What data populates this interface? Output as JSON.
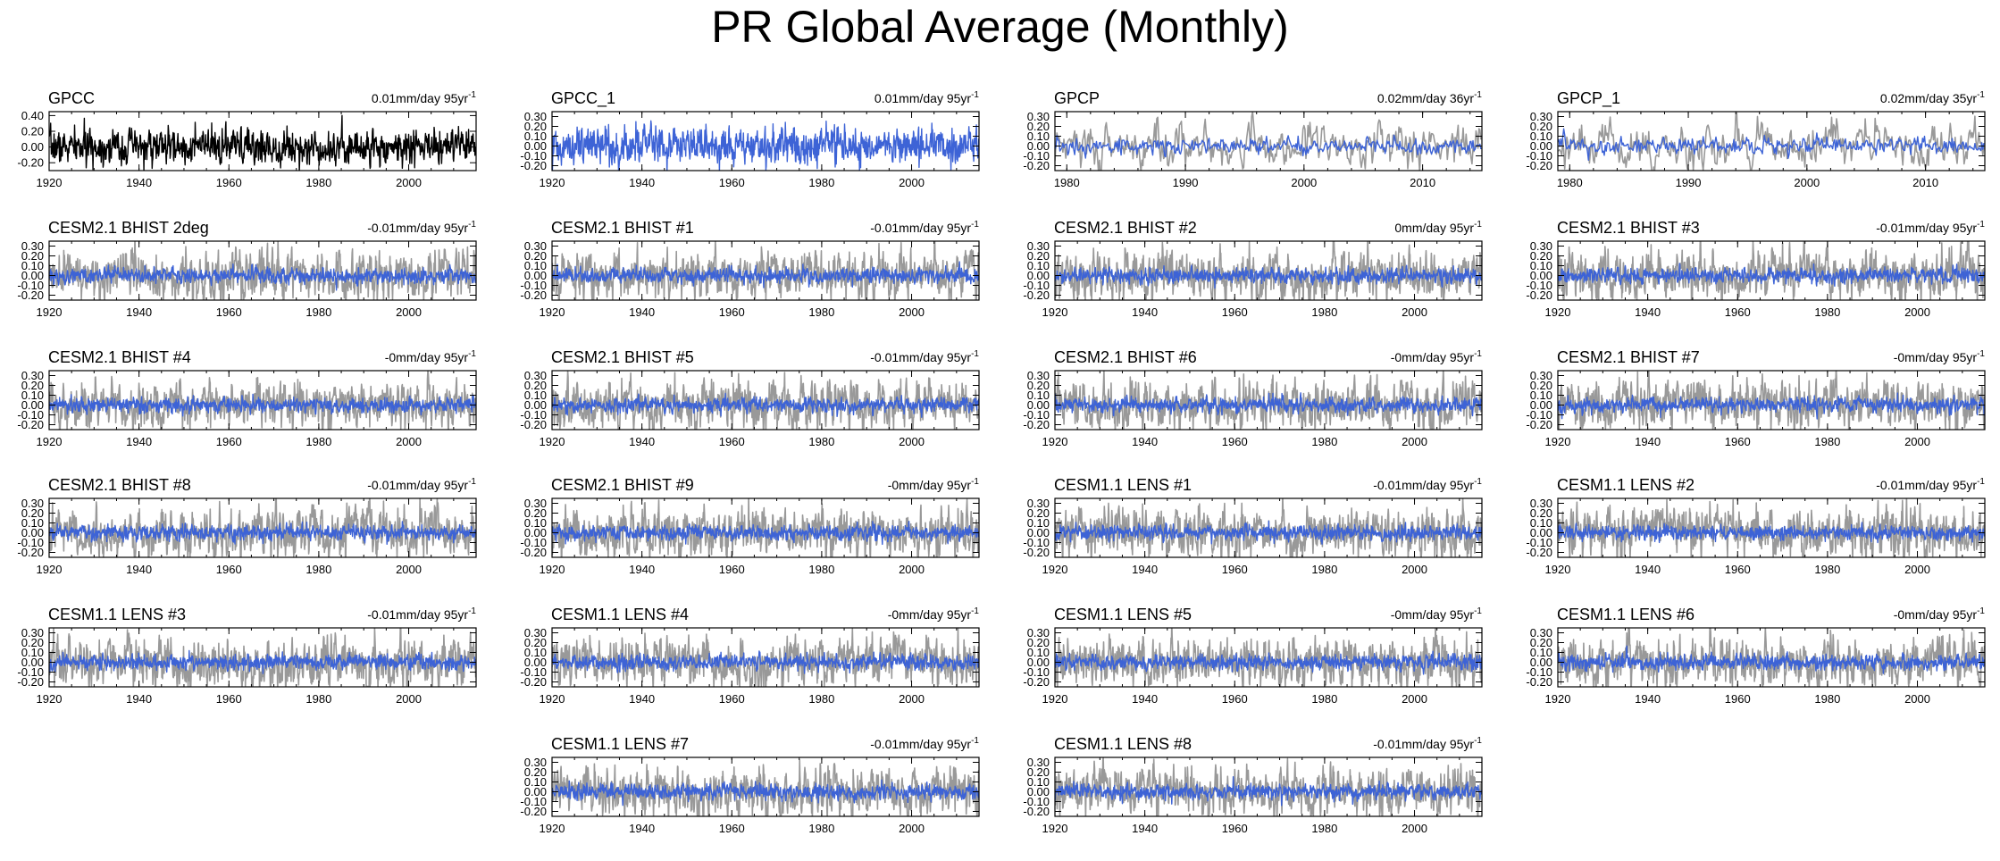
{
  "title": "PR Global Average (Monthly)",
  "colors": {
    "observed": "#000000",
    "model": "#3d63d6",
    "reference": "#999999",
    "frame": "#000000"
  },
  "chart_data": [
    {
      "type": "line",
      "title": "GPCC",
      "trend_label": "0.01mm/day 95yr",
      "trend_exp": "-1",
      "xlim": [
        1920,
        2015
      ],
      "xticks": [
        1920,
        1940,
        1960,
        1980,
        2000
      ],
      "ylim": [
        -0.3,
        0.45
      ],
      "yticks": [
        -0.2,
        0,
        0.2,
        0.4
      ],
      "ytick_labels": [
        "-0.20",
        "0.00",
        "0.20",
        "0.40"
      ],
      "series": [
        {
          "name": "GPCC",
          "role": "observed",
          "amplitude": 0.1
        }
      ]
    },
    {
      "type": "line",
      "title": "GPCC_1",
      "trend_label": "0.01mm/day 95yr",
      "trend_exp": "-1",
      "xlim": [
        1920,
        2015
      ],
      "xticks": [
        1920,
        1940,
        1960,
        1980,
        2000
      ],
      "ylim": [
        -0.25,
        0.35
      ],
      "yticks": [
        -0.2,
        -0.1,
        0,
        0.1,
        0.2,
        0.3
      ],
      "ytick_labels": [
        "-0.20",
        "-0.10",
        "0.00",
        "0.10",
        "0.20",
        "0.30"
      ],
      "series": [
        {
          "name": "GPCC_1",
          "role": "model",
          "amplitude": 0.09
        }
      ]
    },
    {
      "type": "line",
      "title": "GPCP",
      "trend_label": "0.02mm/day 36yr",
      "trend_exp": "-1",
      "xlim": [
        1979,
        2015
      ],
      "xticks": [
        1980,
        1990,
        2000,
        2010
      ],
      "ylim": [
        -0.25,
        0.35
      ],
      "yticks": [
        -0.2,
        -0.1,
        0,
        0.1,
        0.2,
        0.3
      ],
      "ytick_labels": [
        "-0.20",
        "-0.10",
        "0.00",
        "0.10",
        "0.20",
        "0.30"
      ],
      "series": [
        {
          "name": "reference",
          "role": "reference",
          "amplitude": 0.1
        },
        {
          "name": "GPCP",
          "role": "model",
          "amplitude": 0.04
        }
      ]
    },
    {
      "type": "line",
      "title": "GPCP_1",
      "trend_label": "0.02mm/day 35yr",
      "trend_exp": "-1",
      "xlim": [
        1979,
        2015
      ],
      "xticks": [
        1980,
        1990,
        2000,
        2010
      ],
      "ylim": [
        -0.25,
        0.35
      ],
      "yticks": [
        -0.2,
        -0.1,
        0,
        0.1,
        0.2,
        0.3
      ],
      "ytick_labels": [
        "-0.20",
        "-0.10",
        "0.00",
        "0.10",
        "0.20",
        "0.30"
      ],
      "series": [
        {
          "name": "reference",
          "role": "reference",
          "amplitude": 0.1
        },
        {
          "name": "GPCP_1",
          "role": "model",
          "amplitude": 0.04
        }
      ]
    },
    {
      "type": "line",
      "title": "CESM2.1 BHIST 2deg",
      "trend_label": "-0.01mm/day 95yr",
      "trend_exp": "-1",
      "xlim": [
        1920,
        2015
      ],
      "xticks": [
        1920,
        1940,
        1960,
        1980,
        2000
      ],
      "ylim": [
        -0.25,
        0.35
      ],
      "yticks": [
        -0.2,
        -0.1,
        0,
        0.1,
        0.2,
        0.3
      ],
      "ytick_labels": [
        "-0.20",
        "-0.10",
        "0.00",
        "0.10",
        "0.20",
        "0.30"
      ],
      "series": [
        {
          "name": "reference",
          "role": "reference",
          "amplitude": 0.1
        },
        {
          "name": "CESM2.1 BHIST 2deg",
          "role": "model",
          "amplitude": 0.035
        }
      ]
    },
    {
      "type": "line",
      "title": "CESM2.1 BHIST #1",
      "trend_label": "-0.01mm/day 95yr",
      "trend_exp": "-1",
      "xlim": [
        1920,
        2015
      ],
      "xticks": [
        1920,
        1940,
        1960,
        1980,
        2000
      ],
      "ylim": [
        -0.25,
        0.35
      ],
      "yticks": [
        -0.2,
        -0.1,
        0,
        0.1,
        0.2,
        0.3
      ],
      "ytick_labels": [
        "-0.20",
        "-0.10",
        "0.00",
        "0.10",
        "0.20",
        "0.30"
      ],
      "series": [
        {
          "name": "reference",
          "role": "reference",
          "amplitude": 0.1
        },
        {
          "name": "CESM2.1 BHIST #1",
          "role": "model",
          "amplitude": 0.035
        }
      ]
    },
    {
      "type": "line",
      "title": "CESM2.1 BHIST #2",
      "trend_label": "0mm/day 95yr",
      "trend_exp": "-1",
      "xlim": [
        1920,
        2015
      ],
      "xticks": [
        1920,
        1940,
        1960,
        1980,
        2000
      ],
      "ylim": [
        -0.25,
        0.35
      ],
      "yticks": [
        -0.2,
        -0.1,
        0,
        0.1,
        0.2,
        0.3
      ],
      "ytick_labels": [
        "-0.20",
        "-0.10",
        "0.00",
        "0.10",
        "0.20",
        "0.30"
      ],
      "series": [
        {
          "name": "reference",
          "role": "reference",
          "amplitude": 0.1
        },
        {
          "name": "CESM2.1 BHIST #2",
          "role": "model",
          "amplitude": 0.035
        }
      ]
    },
    {
      "type": "line",
      "title": "CESM2.1 BHIST #3",
      "trend_label": "-0.01mm/day 95yr",
      "trend_exp": "-1",
      "xlim": [
        1920,
        2015
      ],
      "xticks": [
        1920,
        1940,
        1960,
        1980,
        2000
      ],
      "ylim": [
        -0.25,
        0.35
      ],
      "yticks": [
        -0.2,
        -0.1,
        0,
        0.1,
        0.2,
        0.3
      ],
      "ytick_labels": [
        "-0.20",
        "-0.10",
        "0.00",
        "0.10",
        "0.20",
        "0.30"
      ],
      "series": [
        {
          "name": "reference",
          "role": "reference",
          "amplitude": 0.1
        },
        {
          "name": "CESM2.1 BHIST #3",
          "role": "model",
          "amplitude": 0.035
        }
      ]
    },
    {
      "type": "line",
      "title": "CESM2.1 BHIST #4",
      "trend_label": "-0mm/day 95yr",
      "trend_exp": "-1",
      "xlim": [
        1920,
        2015
      ],
      "xticks": [
        1920,
        1940,
        1960,
        1980,
        2000
      ],
      "ylim": [
        -0.25,
        0.35
      ],
      "yticks": [
        -0.2,
        -0.1,
        0,
        0.1,
        0.2,
        0.3
      ],
      "ytick_labels": [
        "-0.20",
        "-0.10",
        "0.00",
        "0.10",
        "0.20",
        "0.30"
      ],
      "series": [
        {
          "name": "reference",
          "role": "reference",
          "amplitude": 0.1
        },
        {
          "name": "CESM2.1 BHIST #4",
          "role": "model",
          "amplitude": 0.035
        }
      ]
    },
    {
      "type": "line",
      "title": "CESM2.1 BHIST #5",
      "trend_label": "-0.01mm/day 95yr",
      "trend_exp": "-1",
      "xlim": [
        1920,
        2015
      ],
      "xticks": [
        1920,
        1940,
        1960,
        1980,
        2000
      ],
      "ylim": [
        -0.25,
        0.35
      ],
      "yticks": [
        -0.2,
        -0.1,
        0,
        0.1,
        0.2,
        0.3
      ],
      "ytick_labels": [
        "-0.20",
        "-0.10",
        "0.00",
        "0.10",
        "0.20",
        "0.30"
      ],
      "series": [
        {
          "name": "reference",
          "role": "reference",
          "amplitude": 0.1
        },
        {
          "name": "CESM2.1 BHIST #5",
          "role": "model",
          "amplitude": 0.035
        }
      ]
    },
    {
      "type": "line",
      "title": "CESM2.1 BHIST #6",
      "trend_label": "-0mm/day 95yr",
      "trend_exp": "-1",
      "xlim": [
        1920,
        2015
      ],
      "xticks": [
        1920,
        1940,
        1960,
        1980,
        2000
      ],
      "ylim": [
        -0.25,
        0.35
      ],
      "yticks": [
        -0.2,
        -0.1,
        0,
        0.1,
        0.2,
        0.3
      ],
      "ytick_labels": [
        "-0.20",
        "-0.10",
        "0.00",
        "0.10",
        "0.20",
        "0.30"
      ],
      "series": [
        {
          "name": "reference",
          "role": "reference",
          "amplitude": 0.1
        },
        {
          "name": "CESM2.1 BHIST #6",
          "role": "model",
          "amplitude": 0.035
        }
      ]
    },
    {
      "type": "line",
      "title": "CESM2.1 BHIST #7",
      "trend_label": "-0mm/day 95yr",
      "trend_exp": "-1",
      "xlim": [
        1920,
        2015
      ],
      "xticks": [
        1920,
        1940,
        1960,
        1980,
        2000
      ],
      "ylim": [
        -0.25,
        0.35
      ],
      "yticks": [
        -0.2,
        -0.1,
        0,
        0.1,
        0.2,
        0.3
      ],
      "ytick_labels": [
        "-0.20",
        "-0.10",
        "0.00",
        "0.10",
        "0.20",
        "0.30"
      ],
      "series": [
        {
          "name": "reference",
          "role": "reference",
          "amplitude": 0.1
        },
        {
          "name": "CESM2.1 BHIST #7",
          "role": "model",
          "amplitude": 0.035
        }
      ]
    },
    {
      "type": "line",
      "title": "CESM2.1 BHIST #8",
      "trend_label": "-0.01mm/day 95yr",
      "trend_exp": "-1",
      "xlim": [
        1920,
        2015
      ],
      "xticks": [
        1920,
        1940,
        1960,
        1980,
        2000
      ],
      "ylim": [
        -0.25,
        0.35
      ],
      "yticks": [
        -0.2,
        -0.1,
        0,
        0.1,
        0.2,
        0.3
      ],
      "ytick_labels": [
        "-0.20",
        "-0.10",
        "0.00",
        "0.10",
        "0.20",
        "0.30"
      ],
      "series": [
        {
          "name": "reference",
          "role": "reference",
          "amplitude": 0.1
        },
        {
          "name": "CESM2.1 BHIST #8",
          "role": "model",
          "amplitude": 0.035
        }
      ]
    },
    {
      "type": "line",
      "title": "CESM2.1 BHIST #9",
      "trend_label": "-0mm/day 95yr",
      "trend_exp": "-1",
      "xlim": [
        1920,
        2015
      ],
      "xticks": [
        1920,
        1940,
        1960,
        1980,
        2000
      ],
      "ylim": [
        -0.25,
        0.35
      ],
      "yticks": [
        -0.2,
        -0.1,
        0,
        0.1,
        0.2,
        0.3
      ],
      "ytick_labels": [
        "-0.20",
        "-0.10",
        "0.00",
        "0.10",
        "0.20",
        "0.30"
      ],
      "series": [
        {
          "name": "reference",
          "role": "reference",
          "amplitude": 0.1
        },
        {
          "name": "CESM2.1 BHIST #9",
          "role": "model",
          "amplitude": 0.035
        }
      ]
    },
    {
      "type": "line",
      "title": "CESM1.1 LENS #1",
      "trend_label": "-0.01mm/day 95yr",
      "trend_exp": "-1",
      "xlim": [
        1920,
        2015
      ],
      "xticks": [
        1920,
        1940,
        1960,
        1980,
        2000
      ],
      "ylim": [
        -0.25,
        0.35
      ],
      "yticks": [
        -0.2,
        -0.1,
        0,
        0.1,
        0.2,
        0.3
      ],
      "ytick_labels": [
        "-0.20",
        "-0.10",
        "0.00",
        "0.10",
        "0.20",
        "0.30"
      ],
      "series": [
        {
          "name": "reference",
          "role": "reference",
          "amplitude": 0.1
        },
        {
          "name": "CESM1.1 LENS #1",
          "role": "model",
          "amplitude": 0.035
        }
      ]
    },
    {
      "type": "line",
      "title": "CESM1.1 LENS #2",
      "trend_label": "-0.01mm/day 95yr",
      "trend_exp": "-1",
      "xlim": [
        1920,
        2015
      ],
      "xticks": [
        1920,
        1940,
        1960,
        1980,
        2000
      ],
      "ylim": [
        -0.25,
        0.35
      ],
      "yticks": [
        -0.2,
        -0.1,
        0,
        0.1,
        0.2,
        0.3
      ],
      "ytick_labels": [
        "-0.20",
        "-0.10",
        "0.00",
        "0.10",
        "0.20",
        "0.30"
      ],
      "series": [
        {
          "name": "reference",
          "role": "reference",
          "amplitude": 0.1
        },
        {
          "name": "CESM1.1 LENS #2",
          "role": "model",
          "amplitude": 0.035
        }
      ]
    },
    {
      "type": "line",
      "title": "CESM1.1 LENS #3",
      "trend_label": "-0.01mm/day 95yr",
      "trend_exp": "-1",
      "xlim": [
        1920,
        2015
      ],
      "xticks": [
        1920,
        1940,
        1960,
        1980,
        2000
      ],
      "ylim": [
        -0.25,
        0.35
      ],
      "yticks": [
        -0.2,
        -0.1,
        0,
        0.1,
        0.2,
        0.3
      ],
      "ytick_labels": [
        "-0.20",
        "-0.10",
        "0.00",
        "0.10",
        "0.20",
        "0.30"
      ],
      "series": [
        {
          "name": "reference",
          "role": "reference",
          "amplitude": 0.1
        },
        {
          "name": "CESM1.1 LENS #3",
          "role": "model",
          "amplitude": 0.035
        }
      ]
    },
    {
      "type": "line",
      "title": "CESM1.1 LENS #4",
      "trend_label": "-0mm/day 95yr",
      "trend_exp": "-1",
      "xlim": [
        1920,
        2015
      ],
      "xticks": [
        1920,
        1940,
        1960,
        1980,
        2000
      ],
      "ylim": [
        -0.25,
        0.35
      ],
      "yticks": [
        -0.2,
        -0.1,
        0,
        0.1,
        0.2,
        0.3
      ],
      "ytick_labels": [
        "-0.20",
        "-0.10",
        "0.00",
        "0.10",
        "0.20",
        "0.30"
      ],
      "series": [
        {
          "name": "reference",
          "role": "reference",
          "amplitude": 0.1
        },
        {
          "name": "CESM1.1 LENS #4",
          "role": "model",
          "amplitude": 0.035
        }
      ]
    },
    {
      "type": "line",
      "title": "CESM1.1 LENS #5",
      "trend_label": "-0mm/day 95yr",
      "trend_exp": "-1",
      "xlim": [
        1920,
        2015
      ],
      "xticks": [
        1920,
        1940,
        1960,
        1980,
        2000
      ],
      "ylim": [
        -0.25,
        0.35
      ],
      "yticks": [
        -0.2,
        -0.1,
        0,
        0.1,
        0.2,
        0.3
      ],
      "ytick_labels": [
        "-0.20",
        "-0.10",
        "0.00",
        "0.10",
        "0.20",
        "0.30"
      ],
      "series": [
        {
          "name": "reference",
          "role": "reference",
          "amplitude": 0.1
        },
        {
          "name": "CESM1.1 LENS #5",
          "role": "model",
          "amplitude": 0.035
        }
      ]
    },
    {
      "type": "line",
      "title": "CESM1.1 LENS #6",
      "trend_label": "-0mm/day 95yr",
      "trend_exp": "-1",
      "xlim": [
        1920,
        2015
      ],
      "xticks": [
        1920,
        1940,
        1960,
        1980,
        2000
      ],
      "ylim": [
        -0.25,
        0.35
      ],
      "yticks": [
        -0.2,
        -0.1,
        0,
        0.1,
        0.2,
        0.3
      ],
      "ytick_labels": [
        "-0.20",
        "-0.10",
        "0.00",
        "0.10",
        "0.20",
        "0.30"
      ],
      "series": [
        {
          "name": "reference",
          "role": "reference",
          "amplitude": 0.1
        },
        {
          "name": "CESM1.1 LENS #6",
          "role": "model",
          "amplitude": 0.035
        }
      ]
    },
    {
      "type": "line",
      "title": "CESM1.1 LENS #7",
      "trend_label": "-0.01mm/day 95yr",
      "trend_exp": "-1",
      "xlim": [
        1920,
        2015
      ],
      "xticks": [
        1920,
        1940,
        1960,
        1980,
        2000
      ],
      "ylim": [
        -0.25,
        0.35
      ],
      "yticks": [
        -0.2,
        -0.1,
        0,
        0.1,
        0.2,
        0.3
      ],
      "ytick_labels": [
        "-0.20",
        "-0.10",
        "0.00",
        "0.10",
        "0.20",
        "0.30"
      ],
      "series": [
        {
          "name": "reference",
          "role": "reference",
          "amplitude": 0.1
        },
        {
          "name": "CESM1.1 LENS #7",
          "role": "model",
          "amplitude": 0.035
        }
      ]
    },
    {
      "type": "line",
      "title": "CESM1.1 LENS #8",
      "trend_label": "-0.01mm/day 95yr",
      "trend_exp": "-1",
      "xlim": [
        1920,
        2015
      ],
      "xticks": [
        1920,
        1940,
        1960,
        1980,
        2000
      ],
      "ylim": [
        -0.25,
        0.35
      ],
      "yticks": [
        -0.2,
        -0.1,
        0,
        0.1,
        0.2,
        0.3
      ],
      "ytick_labels": [
        "-0.20",
        "-0.10",
        "0.00",
        "0.10",
        "0.20",
        "0.30"
      ],
      "series": [
        {
          "name": "reference",
          "role": "reference",
          "amplitude": 0.1
        },
        {
          "name": "CESM1.1 LENS #8",
          "role": "model",
          "amplitude": 0.035
        }
      ]
    }
  ]
}
